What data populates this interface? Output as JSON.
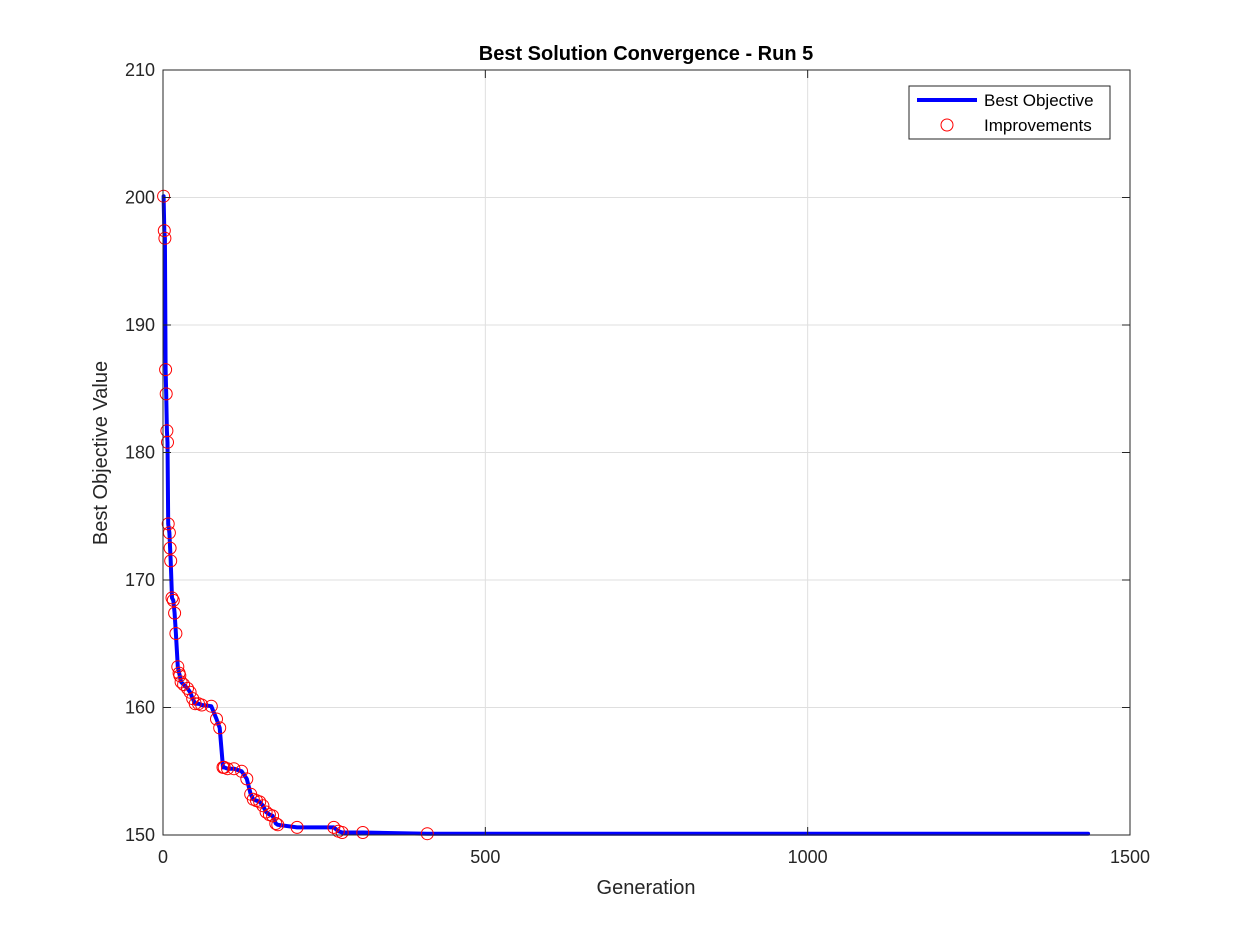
{
  "chart_data": {
    "type": "line",
    "title": "Best Solution Convergence - Run 5",
    "xlabel": "Generation",
    "ylabel": "Best Objective Value",
    "xlim": [
      0,
      1500
    ],
    "ylim": [
      150,
      210
    ],
    "xticks": [
      0,
      500,
      1000,
      1500
    ],
    "yticks": [
      150,
      160,
      170,
      180,
      190,
      200,
      210
    ],
    "grid": true,
    "legend_position": "top-right",
    "series": [
      {
        "name": "Best Objective",
        "style": "line",
        "color": "#0000ff",
        "x": [
          1,
          2,
          3,
          4,
          5,
          6,
          7,
          8,
          10,
          11,
          12,
          14,
          16,
          18,
          20,
          23,
          25,
          26,
          28,
          32,
          38,
          42,
          46,
          50,
          55,
          60,
          75,
          83,
          88,
          93,
          95,
          100,
          110,
          122,
          130,
          136,
          140,
          145,
          150,
          155,
          160,
          165,
          170,
          175,
          178,
          208,
          265,
          272,
          278,
          310,
          410,
          1435
        ],
        "y": [
          200.1,
          197.4,
          196.8,
          186.5,
          184.6,
          181.7,
          180.8,
          174.4,
          173.7,
          172.5,
          171.5,
          168.6,
          168.4,
          167.4,
          165.8,
          163.2,
          162.7,
          162.5,
          162.0,
          161.8,
          161.5,
          161.2,
          160.7,
          160.3,
          160.3,
          160.2,
          160.1,
          159.1,
          158.4,
          155.3,
          155.3,
          155.2,
          155.2,
          155.0,
          154.4,
          153.2,
          152.8,
          152.7,
          152.6,
          152.3,
          151.8,
          151.6,
          151.5,
          150.9,
          150.8,
          150.6,
          150.6,
          150.3,
          150.2,
          150.2,
          150.1,
          150.1
        ]
      },
      {
        "name": "Improvements",
        "style": "markers",
        "marker": "circle",
        "color": "#ff0000",
        "x": [
          1,
          2,
          3,
          4,
          5,
          6,
          7,
          8,
          10,
          11,
          12,
          14,
          16,
          18,
          20,
          23,
          25,
          26,
          28,
          32,
          38,
          42,
          46,
          50,
          55,
          60,
          75,
          83,
          88,
          93,
          95,
          100,
          110,
          122,
          130,
          136,
          140,
          145,
          150,
          155,
          160,
          165,
          170,
          175,
          178,
          208,
          265,
          272,
          278,
          310,
          410
        ],
        "y": [
          200.1,
          197.4,
          196.8,
          186.5,
          184.6,
          181.7,
          180.8,
          174.4,
          173.7,
          172.5,
          171.5,
          168.6,
          168.4,
          167.4,
          165.8,
          163.2,
          162.7,
          162.5,
          162.0,
          161.8,
          161.5,
          161.2,
          160.7,
          160.3,
          160.3,
          160.2,
          160.1,
          159.1,
          158.4,
          155.3,
          155.3,
          155.2,
          155.2,
          155.0,
          154.4,
          153.2,
          152.8,
          152.7,
          152.6,
          152.3,
          151.8,
          151.6,
          151.5,
          150.9,
          150.8,
          150.6,
          150.6,
          150.3,
          150.2,
          150.2,
          150.1
        ]
      }
    ]
  }
}
